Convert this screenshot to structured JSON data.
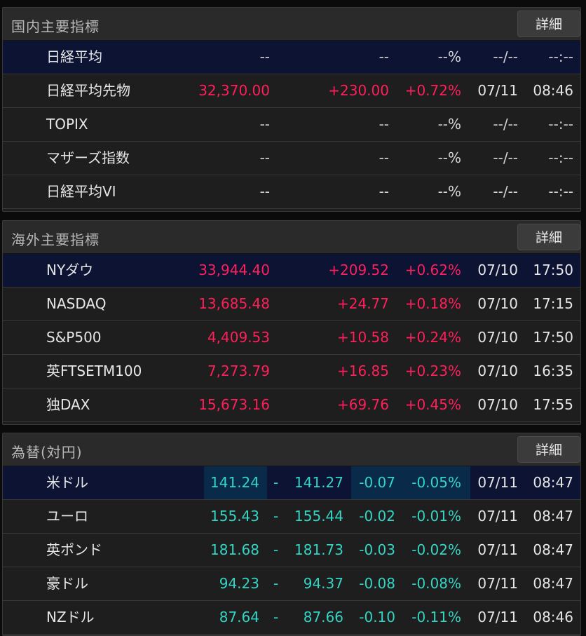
{
  "domestic": {
    "title": "国内主要指標",
    "detail_label": "詳細",
    "rows": [
      {
        "name": "日経平均",
        "price": "--",
        "change": "--",
        "pct": "--%",
        "date": "--/--",
        "time": "--:--"
      },
      {
        "name": "日経平均先物",
        "price": "32,370.00",
        "change": "+230.00",
        "pct": "+0.72%",
        "date": "07/11",
        "time": "08:46"
      },
      {
        "name": "TOPIX",
        "price": "--",
        "change": "--",
        "pct": "--%",
        "date": "--/--",
        "time": "--:--"
      },
      {
        "name": "マザーズ指数",
        "price": "--",
        "change": "--",
        "pct": "--%",
        "date": "--/--",
        "time": "--:--"
      },
      {
        "name": "日経平均VI",
        "price": "--",
        "change": "--",
        "pct": "--%",
        "date": "--/--",
        "time": "--:--"
      }
    ]
  },
  "overseas": {
    "title": "海外主要指標",
    "detail_label": "詳細",
    "rows": [
      {
        "name": "NYダウ",
        "price": "33,944.40",
        "change": "+209.52",
        "pct": "+0.62%",
        "date": "07/10",
        "time": "17:50"
      },
      {
        "name": "NASDAQ",
        "price": "13,685.48",
        "change": "+24.77",
        "pct": "+0.18%",
        "date": "07/10",
        "time": "17:15"
      },
      {
        "name": "S&P500",
        "price": "4,409.53",
        "change": "+10.58",
        "pct": "+0.24%",
        "date": "07/10",
        "time": "17:50"
      },
      {
        "name": "英FTSETM100",
        "price": "7,273.79",
        "change": "+16.85",
        "pct": "+0.23%",
        "date": "07/10",
        "time": "16:35"
      },
      {
        "name": "独DAX",
        "price": "15,673.16",
        "change": "+69.76",
        "pct": "+0.45%",
        "date": "07/10",
        "time": "17:55"
      }
    ]
  },
  "fx": {
    "title": "為替(対円)",
    "detail_label": "詳細",
    "rows": [
      {
        "name": "米ドル",
        "bid": "141.24",
        "sep": "-",
        "ask": "141.27",
        "change": "-0.07",
        "pct": "-0.05%",
        "date": "07/11",
        "time": "08:47"
      },
      {
        "name": "ユーロ",
        "bid": "155.43",
        "sep": "-",
        "ask": "155.44",
        "change": "-0.02",
        "pct": "-0.01%",
        "date": "07/11",
        "time": "08:47"
      },
      {
        "name": "英ポンド",
        "bid": "181.68",
        "sep": "-",
        "ask": "181.73",
        "change": "-0.03",
        "pct": "-0.02%",
        "date": "07/11",
        "time": "08:47"
      },
      {
        "name": "豪ドル",
        "bid": "94.23",
        "sep": "-",
        "ask": "94.37",
        "change": "-0.08",
        "pct": "-0.08%",
        "date": "07/11",
        "time": "08:47"
      },
      {
        "name": "NZドル",
        "bid": "87.64",
        "sep": "-",
        "ask": "87.66",
        "change": "-0.10",
        "pct": "-0.11%",
        "date": "07/11",
        "time": "08:46"
      }
    ]
  },
  "colors": {
    "up": "#ff1f5a",
    "fx": "#35d4c4",
    "selected_row": "#0c1333",
    "fx_highlight": "#0a2a4a"
  }
}
